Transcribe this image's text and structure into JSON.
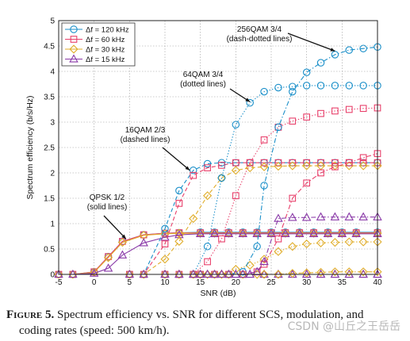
{
  "caption": {
    "label": "Figure 5.",
    "line1": "Spectrum efficiency vs. SNR for different SCS, modulation, and",
    "line2": "coding rates (speed: 500 km/h)."
  },
  "watermark": "CSDN @山丘之王岳岳",
  "chart_data": {
    "type": "line",
    "xlabel": "SNR (dB)",
    "ylabel": "Spectrum efficiency (b/s/Hz)",
    "xlim": [
      -5,
      40
    ],
    "ylim": [
      0,
      5
    ],
    "x_ticks": [
      -5,
      0,
      5,
      10,
      15,
      20,
      25,
      30,
      35,
      40
    ],
    "y_ticks": [
      0,
      0.5,
      1,
      1.5,
      2,
      2.5,
      3,
      3.5,
      4,
      4.5,
      5
    ],
    "grid": true,
    "legend_position": "top-left",
    "legend": [
      {
        "label": "Δf = 120 kHz",
        "color": "#1a8fc9",
        "marker": "circle"
      },
      {
        "label": "Δf = 60 kHz",
        "color": "#e8406b",
        "marker": "square"
      },
      {
        "label": "Δf = 30 kHz",
        "color": "#e0ad2a",
        "marker": "diamond"
      },
      {
        "label": "Δf = 15 kHz",
        "color": "#8a3aa8",
        "marker": "triangle"
      }
    ],
    "groups": [
      {
        "name": "QPSK 1/2",
        "dash": "solid",
        "series": [
          {
            "scs": "120 kHz",
            "x": [
              -5,
              -3,
              0,
              2,
              4,
              7,
              10,
              12,
              15,
              17,
              19,
              21,
              23,
              25,
              27,
              29,
              31,
              33,
              35,
              37,
              40
            ],
            "y": [
              0,
              0,
              0.05,
              0.35,
              0.65,
              0.78,
              0.81,
              0.82,
              0.83,
              0.83,
              0.83,
              0.83,
              0.83,
              0.83,
              0.83,
              0.83,
              0.83,
              0.83,
              0.83,
              0.83,
              0.83
            ]
          },
          {
            "scs": "60 kHz",
            "x": [
              -5,
              -3,
              0,
              2,
              4,
              7,
              10,
              12,
              15,
              17,
              19,
              21,
              23,
              25,
              27,
              29,
              31,
              33,
              35,
              37,
              40
            ],
            "y": [
              0,
              0,
              0.05,
              0.35,
              0.65,
              0.78,
              0.81,
              0.82,
              0.82,
              0.82,
              0.82,
              0.82,
              0.82,
              0.82,
              0.82,
              0.82,
              0.82,
              0.82,
              0.82,
              0.82,
              0.82
            ]
          },
          {
            "scs": "30 kHz",
            "x": [
              -5,
              -3,
              0,
              2,
              4,
              7,
              10,
              12,
              15,
              17,
              19,
              21,
              23,
              25,
              27,
              29,
              31,
              33,
              35,
              37,
              40
            ],
            "y": [
              0,
              0,
              0.04,
              0.33,
              0.63,
              0.77,
              0.8,
              0.81,
              0.81,
              0.81,
              0.81,
              0.81,
              0.81,
              0.81,
              0.81,
              0.81,
              0.81,
              0.81,
              0.81,
              0.81,
              0.81
            ]
          },
          {
            "scs": "15 kHz",
            "x": [
              -5,
              -3,
              0,
              2,
              4,
              7,
              10,
              12,
              15,
              17,
              19,
              21,
              23,
              25,
              27,
              29,
              31,
              33,
              35,
              37,
              40
            ],
            "y": [
              0,
              0,
              0.02,
              0.12,
              0.38,
              0.62,
              0.73,
              0.78,
              0.8,
              0.8,
              0.8,
              0.8,
              0.8,
              0.8,
              0.8,
              0.8,
              0.8,
              0.8,
              0.8,
              0.8,
              0.8
            ]
          }
        ]
      },
      {
        "name": "16QAM 2/3",
        "dash": "dashed",
        "series": [
          {
            "scs": "120 kHz",
            "x": [
              5,
              7,
              10,
              12,
              14,
              16,
              18,
              20,
              22,
              24,
              26,
              28,
              30,
              32,
              34,
              36,
              38,
              40
            ],
            "y": [
              0,
              0,
              0.9,
              1.65,
              2.05,
              2.18,
              2.2,
              2.2,
              2.2,
              2.2,
              2.2,
              2.2,
              2.2,
              2.2,
              2.2,
              2.2,
              2.2,
              2.2
            ]
          },
          {
            "scs": "60 kHz",
            "x": [
              5,
              7,
              10,
              12,
              14,
              16,
              18,
              20,
              22,
              24,
              26,
              28,
              30,
              32,
              34,
              36,
              38,
              40
            ],
            "y": [
              0,
              0,
              0.6,
              1.4,
              1.95,
              2.1,
              2.15,
              2.2,
              2.2,
              2.2,
              2.2,
              2.2,
              2.2,
              2.2,
              2.2,
              2.2,
              2.2,
              2.2
            ]
          },
          {
            "scs": "30 kHz",
            "x": [
              5,
              7,
              10,
              12,
              14,
              16,
              18,
              20,
              22,
              24,
              26,
              28,
              30,
              32,
              34,
              36,
              38,
              40
            ],
            "y": [
              0,
              0,
              0.3,
              0.65,
              1.1,
              1.55,
              1.9,
              2.05,
              2.1,
              2.12,
              2.13,
              2.14,
              2.14,
              2.14,
              2.14,
              2.14,
              2.14,
              2.14
            ]
          },
          {
            "scs": "15 kHz",
            "x": [
              5,
              7,
              10,
              12,
              14,
              16,
              18,
              20,
              22,
              24,
              26,
              28,
              30,
              32,
              34,
              36,
              38,
              40
            ],
            "y": [
              0,
              0,
              0,
              0,
              0,
              0,
              0,
              0,
              0,
              0,
              0,
              0,
              0,
              0,
              0,
              0,
              0,
              0
            ]
          }
        ]
      },
      {
        "name": "64QAM 3/4",
        "dash": "dotted",
        "series": [
          {
            "scs": "120 kHz",
            "x": [
              10,
              12,
              14,
              16,
              18,
              20,
              22,
              24,
              26,
              28,
              30,
              32,
              34,
              36,
              38,
              40
            ],
            "y": [
              0,
              0,
              0,
              0.55,
              1.9,
              2.95,
              3.38,
              3.6,
              3.68,
              3.7,
              3.72,
              3.72,
              3.72,
              3.72,
              3.72,
              3.72
            ]
          },
          {
            "scs": "60 kHz",
            "x": [
              10,
              12,
              14,
              16,
              18,
              20,
              22,
              24,
              26,
              28,
              30,
              32,
              34,
              36,
              38,
              40
            ],
            "y": [
              0,
              0,
              0,
              0.25,
              0.7,
              1.55,
              2.2,
              2.65,
              2.9,
              3.02,
              3.1,
              3.17,
              3.22,
              3.25,
              3.27,
              3.28
            ]
          },
          {
            "scs": "30 kHz",
            "x": [
              10,
              12,
              14,
              16,
              18,
              20,
              22,
              24,
              26,
              28,
              30,
              32,
              34,
              36,
              38,
              40
            ],
            "y": [
              0,
              0,
              0,
              0,
              0,
              0.1,
              0.18,
              0.3,
              0.45,
              0.55,
              0.6,
              0.62,
              0.63,
              0.64,
              0.64,
              0.64
            ]
          },
          {
            "scs": "15 kHz",
            "x": [
              10,
              12,
              14,
              16,
              18,
              20,
              22,
              24,
              26,
              28,
              30,
              32,
              34,
              36,
              38,
              40
            ],
            "y": [
              0,
              0,
              0,
              0,
              0,
              0,
              0,
              0,
              0,
              0,
              0,
              0,
              0,
              0,
              0,
              0
            ]
          }
        ]
      },
      {
        "name": "256QAM 3/4",
        "dash": "dash-dotted",
        "series": [
          {
            "scs": "120 kHz",
            "x": [
              15,
              17,
              19,
              21,
              23,
              24,
              26,
              28,
              30,
              32,
              34,
              36,
              38,
              40
            ],
            "y": [
              0,
              0,
              0,
              0.05,
              0.55,
              1.75,
              2.9,
              3.6,
              3.98,
              4.17,
              4.33,
              4.42,
              4.45,
              4.48
            ]
          },
          {
            "scs": "60 kHz",
            "x": [
              15,
              17,
              19,
              21,
              23,
              24,
              26,
              28,
              30,
              32,
              34,
              36,
              38,
              40
            ],
            "y": [
              0,
              0,
              0,
              0,
              0.05,
              0.2,
              0.7,
              1.5,
              1.8,
              2.0,
              2.12,
              2.2,
              2.3,
              2.38
            ]
          },
          {
            "scs": "30 kHz",
            "x": [
              15,
              17,
              19,
              21,
              23,
              24,
              26,
              28,
              30,
              32,
              34,
              36,
              38,
              40
            ],
            "y": [
              0,
              0,
              0,
              0,
              0,
              0,
              0,
              0.02,
              0.03,
              0.04,
              0.05,
              0.05,
              0.05,
              0.05
            ]
          },
          {
            "scs": "15 kHz",
            "x": [
              15,
              17,
              19,
              21,
              23,
              24,
              26,
              28,
              30,
              32,
              34,
              36,
              38,
              40
            ],
            "y": [
              0,
              0,
              0,
              0,
              0.05,
              0.25,
              1.1,
              1.12,
              1.12,
              1.13,
              1.13,
              1.13,
              1.13,
              1.13
            ]
          }
        ]
      }
    ],
    "annotations": [
      {
        "lines": [
          "256QAM 3/4",
          "(dash-dotted lines)"
        ],
        "target": [
          34,
          4.4
        ]
      },
      {
        "lines": [
          "64QAM 3/4",
          "(dotted lines)"
        ],
        "target": [
          22,
          3.4
        ]
      },
      {
        "lines": [
          "16QAM 2/3",
          "(dashed lines)"
        ],
        "target": [
          13.5,
          2.05
        ]
      },
      {
        "lines": [
          "QPSK 1/2",
          "(solid lines)"
        ],
        "target": [
          4.5,
          0.7
        ]
      }
    ]
  }
}
